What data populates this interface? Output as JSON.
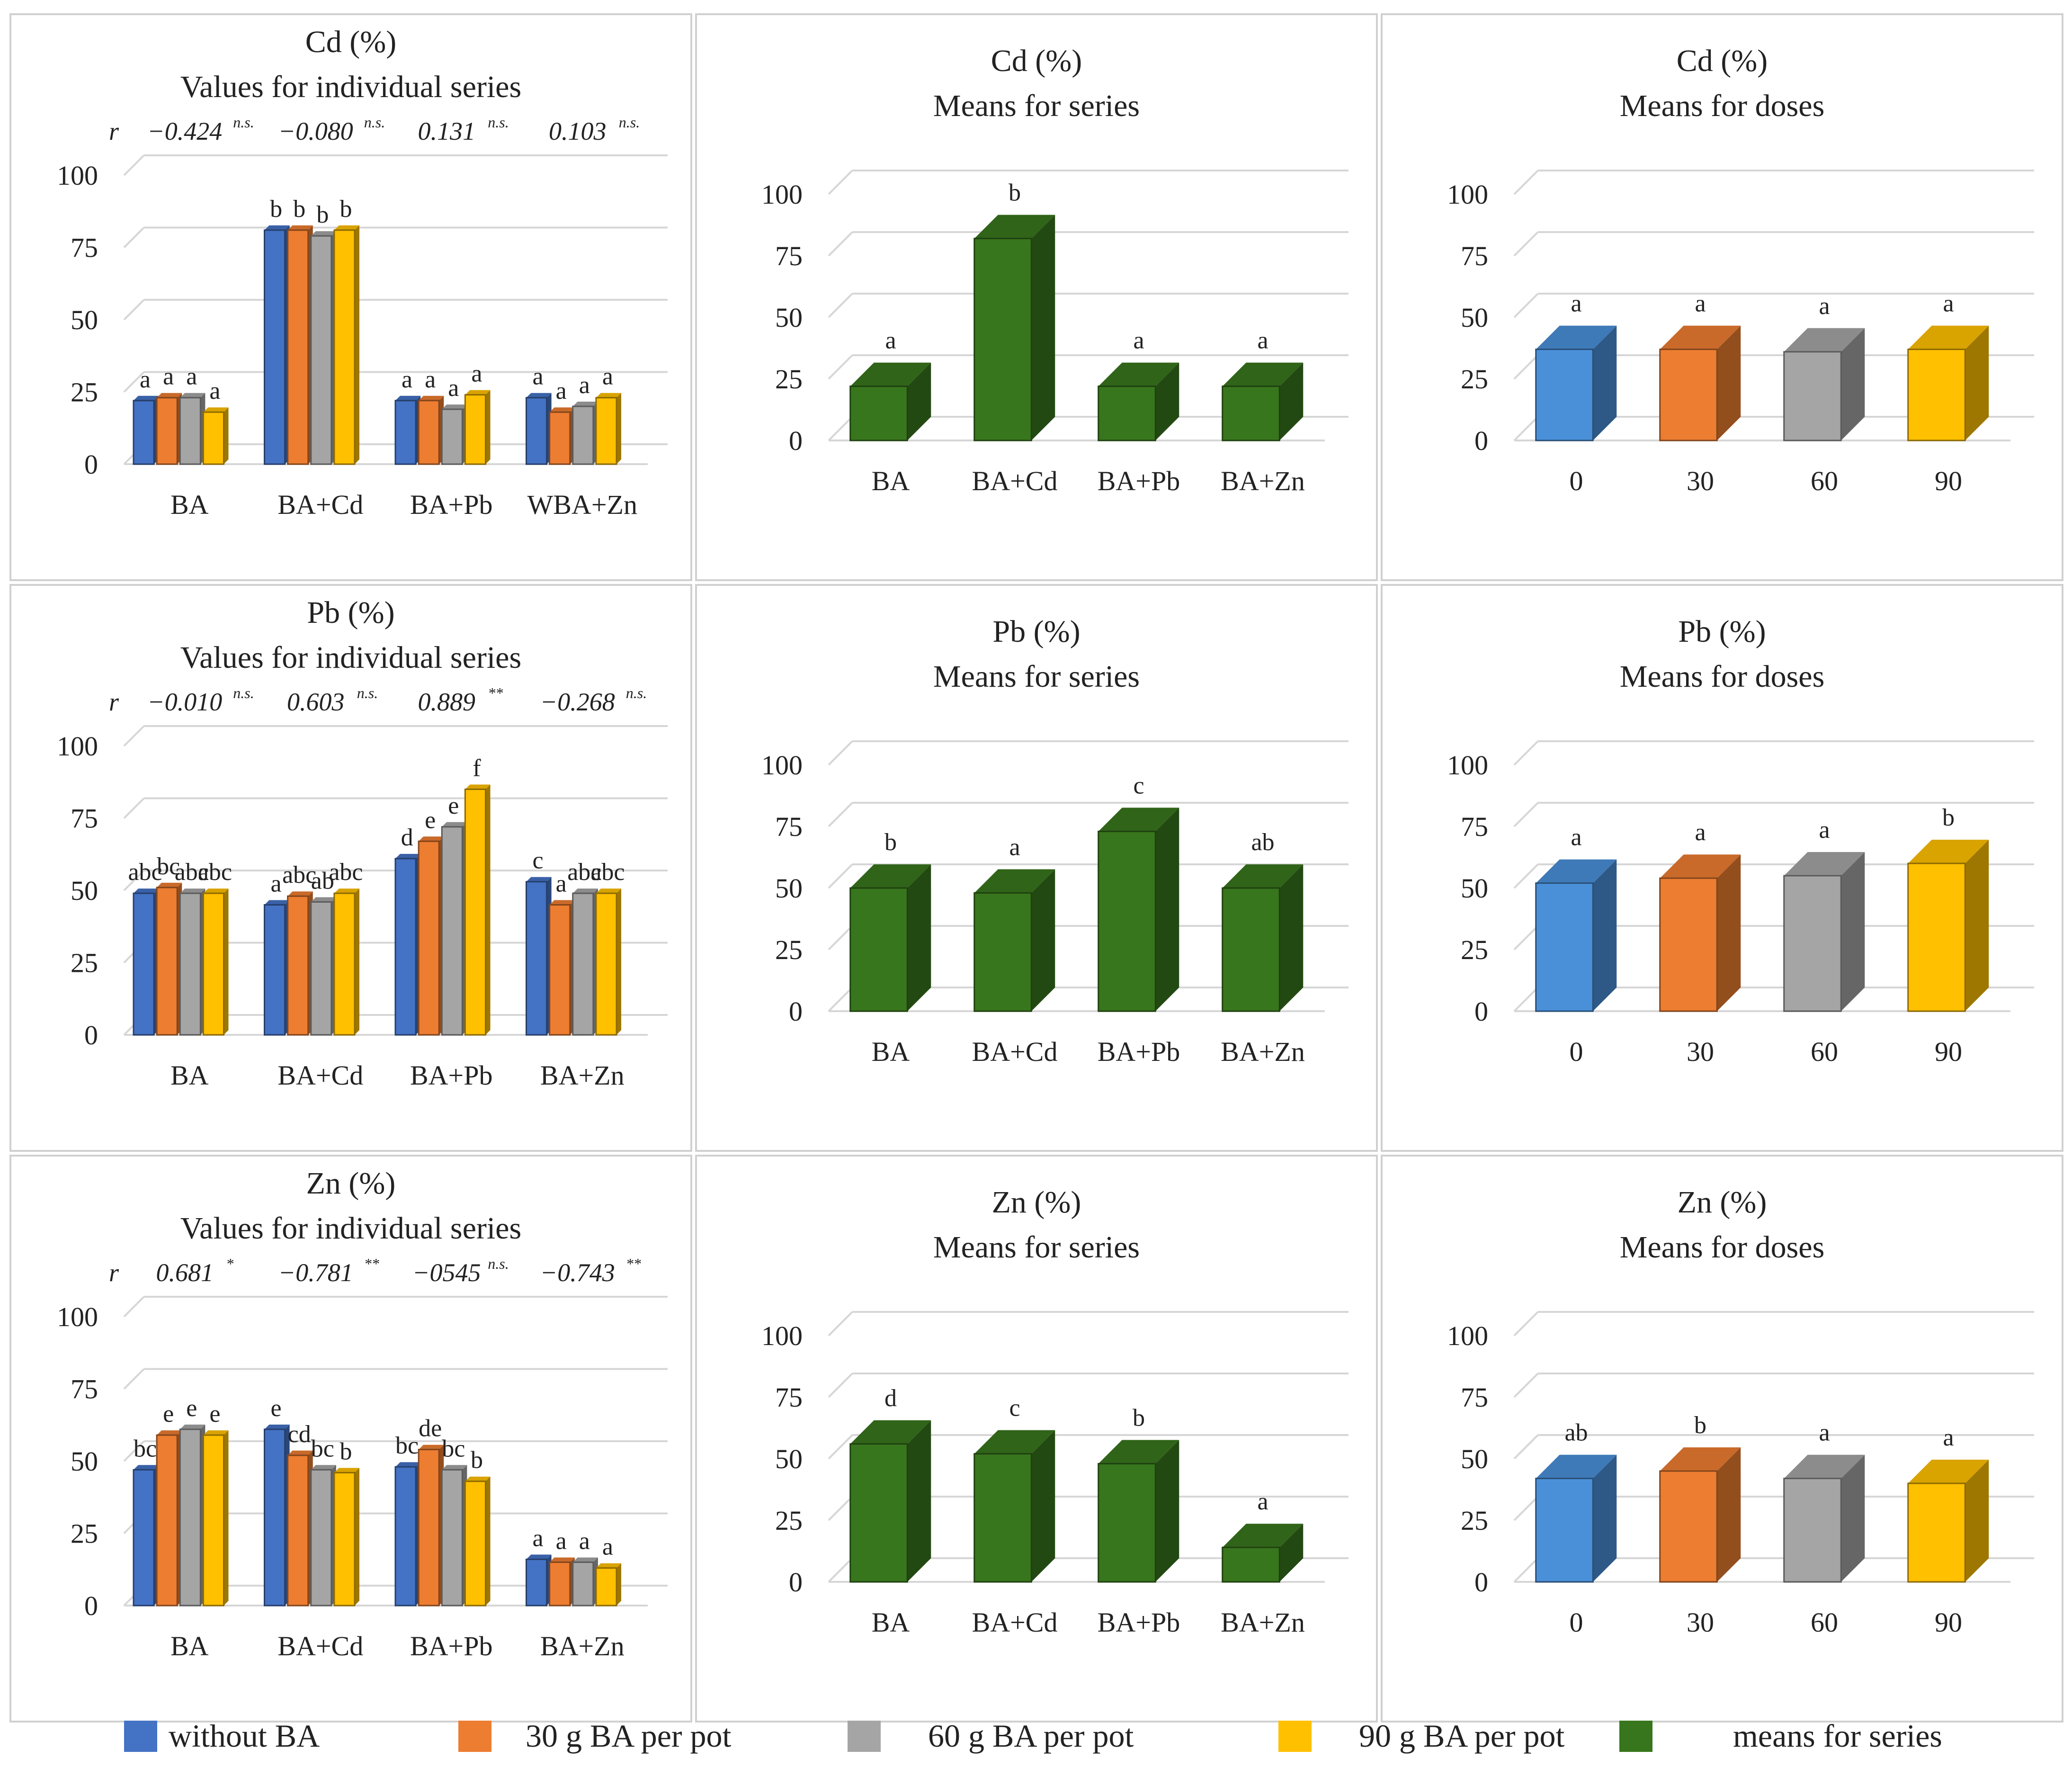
{
  "legend": [
    {
      "label": "without BA",
      "color": "#4472C4",
      "key": "s0"
    },
    {
      "label": "30 g BA per pot",
      "color": "#ED7D31",
      "key": "s1"
    },
    {
      "label": "60 g BA per pot",
      "color": "#A5A5A5",
      "key": "s2"
    },
    {
      "label": "90 g BA per pot",
      "color": "#FFC000",
      "key": "s3"
    },
    {
      "label": "means for series",
      "color": "#38761D",
      "key": "mean"
    }
  ],
  "chart_data": [
    {
      "type": "bar",
      "variant": "clustered-3d",
      "row": 0,
      "col": 0,
      "title": "Cd (%)",
      "subtitle": "Values for individual  series",
      "r_label": "r",
      "r_values": [
        {
          "value": "−0.424",
          "sig": "n.s."
        },
        {
          "value": "−0.080",
          "sig": "n.s."
        },
        {
          "value": "0.131",
          "sig": "n.s."
        },
        {
          "value": "0.103",
          "sig": "n.s."
        }
      ],
      "categories": [
        "BA",
        "BA+Cd",
        "BA+Pb",
        "WBA+Zn"
      ],
      "ylim": [
        0,
        100
      ],
      "yticks": [
        "0",
        "25",
        "50",
        "75",
        "100"
      ],
      "series": [
        {
          "name": "without BA",
          "color": "#4472C4",
          "values": [
            22,
            81,
            22,
            23
          ],
          "letters": [
            "a",
            "b",
            "a",
            "a"
          ]
        },
        {
          "name": "30 g BA per pot",
          "color": "#ED7D31",
          "values": [
            23,
            81,
            22,
            18
          ],
          "letters": [
            "a",
            "b",
            "a",
            "a"
          ]
        },
        {
          "name": "60 g BA per pot",
          "color": "#A5A5A5",
          "values": [
            23,
            79,
            19,
            20
          ],
          "letters": [
            "a",
            "b",
            "a",
            "a"
          ]
        },
        {
          "name": "90 g BA per pot",
          "color": "#FFC000",
          "values": [
            18,
            81,
            24,
            23
          ],
          "letters": [
            "a",
            "b",
            "a",
            "a"
          ]
        }
      ]
    },
    {
      "type": "bar",
      "variant": "single-3d",
      "row": 0,
      "col": 1,
      "title": "Cd (%)",
      "subtitle": "Means for series",
      "categories": [
        "BA",
        "BA+Cd",
        "BA+Pb",
        "BA+Zn"
      ],
      "ylim": [
        0,
        100
      ],
      "yticks": [
        "0",
        "25",
        "50",
        "75",
        "100"
      ],
      "values": [
        22,
        82,
        22,
        22
      ],
      "letters": [
        "a",
        "b",
        "a",
        "a"
      ],
      "colors": [
        "#38761D",
        "#38761D",
        "#38761D",
        "#38761D"
      ]
    },
    {
      "type": "bar",
      "variant": "single-3d",
      "row": 0,
      "col": 2,
      "title": "Cd (%)",
      "subtitle": "Means for doses",
      "categories": [
        "0",
        "30",
        "60",
        "90"
      ],
      "ylim": [
        0,
        100
      ],
      "yticks": [
        "0",
        "25",
        "50",
        "75",
        "100"
      ],
      "values": [
        37,
        37,
        36,
        37
      ],
      "letters": [
        "a",
        "a",
        "a",
        "a"
      ],
      "colors": [
        "#4A90D9",
        "#ED7D31",
        "#A5A5A5",
        "#FFC000"
      ]
    },
    {
      "type": "bar",
      "variant": "clustered-3d",
      "row": 1,
      "col": 0,
      "title": "Pb (%)",
      "subtitle": "Values for individual  series",
      "r_label": "r",
      "r_values": [
        {
          "value": "−0.010",
          "sig": "n.s."
        },
        {
          "value": "0.603",
          "sig": "n.s."
        },
        {
          "value": "0.889",
          "sig": "**"
        },
        {
          "value": "−0.268",
          "sig": "n.s."
        }
      ],
      "categories": [
        "BA",
        "BA+Cd",
        "BA+Pb",
        "BA+Zn"
      ],
      "ylim": [
        0,
        100
      ],
      "yticks": [
        "0",
        "25",
        "50",
        "75",
        "100"
      ],
      "series": [
        {
          "name": "without BA",
          "color": "#4472C4",
          "values": [
            49,
            45,
            61,
            53
          ],
          "letters": [
            "abc",
            "a",
            "d",
            "c"
          ]
        },
        {
          "name": "30 g BA per pot",
          "color": "#ED7D31",
          "values": [
            51,
            48,
            67,
            45
          ],
          "letters": [
            "bc",
            "abc",
            "e",
            "a"
          ]
        },
        {
          "name": "60 g BA per pot",
          "color": "#A5A5A5",
          "values": [
            49,
            46,
            72,
            49
          ],
          "letters": [
            "abc",
            "ab",
            "e",
            "abc"
          ]
        },
        {
          "name": "90 g BA per pot",
          "color": "#FFC000",
          "values": [
            49,
            49,
            85,
            49
          ],
          "letters": [
            "abc",
            "abc",
            "f",
            "abc"
          ]
        }
      ]
    },
    {
      "type": "bar",
      "variant": "single-3d",
      "row": 1,
      "col": 1,
      "title": "Pb (%)",
      "subtitle": "Means for series",
      "categories": [
        "BA",
        "BA+Cd",
        "BA+Pb",
        "BA+Zn"
      ],
      "ylim": [
        0,
        100
      ],
      "yticks": [
        "0",
        "25",
        "50",
        "75",
        "100"
      ],
      "values": [
        50,
        48,
        73,
        50
      ],
      "letters": [
        "b",
        "a",
        "c",
        "ab"
      ],
      "colors": [
        "#38761D",
        "#38761D",
        "#38761D",
        "#38761D"
      ]
    },
    {
      "type": "bar",
      "variant": "single-3d",
      "row": 1,
      "col": 2,
      "title": "Pb (%)",
      "subtitle": "Means for doses",
      "categories": [
        "0",
        "30",
        "60",
        "90"
      ],
      "ylim": [
        0,
        100
      ],
      "yticks": [
        "0",
        "25",
        "50",
        "75",
        "100"
      ],
      "values": [
        52,
        54,
        55,
        60
      ],
      "letters": [
        "a",
        "a",
        "a",
        "b"
      ],
      "colors": [
        "#4A90D9",
        "#ED7D31",
        "#A5A5A5",
        "#FFC000"
      ]
    },
    {
      "type": "bar",
      "variant": "clustered-3d",
      "row": 2,
      "col": 0,
      "title": "Zn (%)",
      "subtitle": "Values for individual  series",
      "r_label": "r",
      "r_values": [
        {
          "value": "0.681",
          "sig": "*"
        },
        {
          "value": "−0.781",
          "sig": "**"
        },
        {
          "value": "−0545",
          "sig": "n.s."
        },
        {
          "value": "−0.743",
          "sig": "**"
        }
      ],
      "categories": [
        "BA",
        "BA+Cd",
        "BA+Pb",
        "BA+Zn"
      ],
      "ylim": [
        0,
        100
      ],
      "yticks": [
        "0",
        "25",
        "50",
        "75",
        "100"
      ],
      "series": [
        {
          "name": "without BA",
          "color": "#4472C4",
          "values": [
            47,
            61,
            48,
            16
          ],
          "letters": [
            "bc",
            "e",
            "bc",
            "a"
          ]
        },
        {
          "name": "30 g BA per pot",
          "color": "#ED7D31",
          "values": [
            59,
            52,
            54,
            15
          ],
          "letters": [
            "e",
            "cd",
            "de",
            "a"
          ]
        },
        {
          "name": "60 g BA per pot",
          "color": "#A5A5A5",
          "values": [
            61,
            47,
            47,
            15
          ],
          "letters": [
            "e",
            "bc",
            "bc",
            "a"
          ]
        },
        {
          "name": "90 g BA per pot",
          "color": "#FFC000",
          "values": [
            59,
            46,
            43,
            13
          ],
          "letters": [
            "e",
            "b",
            "b",
            "a"
          ]
        }
      ]
    },
    {
      "type": "bar",
      "variant": "single-3d",
      "row": 2,
      "col": 1,
      "title": "Zn (%)",
      "subtitle": "Means for series",
      "categories": [
        "BA",
        "BA+Cd",
        "BA+Pb",
        "BA+Zn"
      ],
      "ylim": [
        0,
        100
      ],
      "yticks": [
        "0",
        "25",
        "50",
        "75",
        "100"
      ],
      "values": [
        56,
        52,
        48,
        14
      ],
      "letters": [
        "d",
        "c",
        "b",
        "a"
      ],
      "colors": [
        "#38761D",
        "#38761D",
        "#38761D",
        "#38761D"
      ]
    },
    {
      "type": "bar",
      "variant": "single-3d",
      "row": 2,
      "col": 2,
      "title": "Zn (%)",
      "subtitle": "Means for doses",
      "categories": [
        "0",
        "30",
        "60",
        "90"
      ],
      "ylim": [
        0,
        100
      ],
      "yticks": [
        "0",
        "25",
        "50",
        "75",
        "100"
      ],
      "values": [
        42,
        45,
        42,
        40
      ],
      "letters": [
        "ab",
        "b",
        "a",
        "a"
      ],
      "colors": [
        "#4A90D9",
        "#ED7D31",
        "#A5A5A5",
        "#FFC000"
      ]
    }
  ]
}
